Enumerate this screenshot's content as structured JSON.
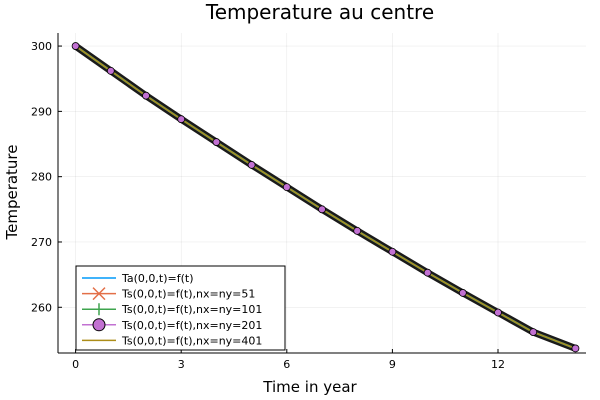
{
  "chart_data": {
    "type": "line",
    "title": "Temperature au centre",
    "xlabel": "Time in year",
    "ylabel": "Temperature",
    "xlim": [
      -0.5,
      14.5
    ],
    "ylim": [
      253.0,
      302.0
    ],
    "xticks": [
      0,
      3,
      6,
      9,
      12
    ],
    "yticks": [
      260,
      270,
      280,
      290,
      300
    ],
    "grid": true,
    "legend_position": "bottom-left",
    "x": [
      0.0,
      1.0,
      2.0,
      3.0,
      4.0,
      5.0,
      6.0,
      7.0,
      8.0,
      9.0,
      10.0,
      11.0,
      12.0,
      13.0,
      14.2
    ],
    "series": [
      {
        "name": "Ta(0,0,t)=f(t)",
        "color": "#009AFA",
        "marker": "none",
        "values": [
          300.0,
          296.2,
          292.4,
          288.8,
          285.3,
          281.8,
          278.4,
          275.0,
          271.7,
          268.5,
          265.3,
          262.2,
          259.2,
          256.2,
          253.7
        ]
      },
      {
        "name": "Ts(0,0,t)=f(t),nx=ny=51",
        "color": "#E36F47",
        "marker": "x",
        "values": [
          300.0,
          296.2,
          292.4,
          288.8,
          285.3,
          281.8,
          278.4,
          275.0,
          271.7,
          268.5,
          265.3,
          262.2,
          259.2,
          256.2,
          253.7
        ]
      },
      {
        "name": "Ts(0,0,t)=f(t),nx=ny=101",
        "color": "#3EA44E",
        "marker": "+",
        "values": [
          300.0,
          296.2,
          292.4,
          288.8,
          285.3,
          281.8,
          278.4,
          275.0,
          271.7,
          268.5,
          265.3,
          262.2,
          259.2,
          256.2,
          253.7
        ]
      },
      {
        "name": "Ts(0,0,t)=f(t),nx=ny=201",
        "color": "#C271D2",
        "marker": "circle",
        "values": [
          300.0,
          296.2,
          292.4,
          288.8,
          285.3,
          281.8,
          278.4,
          275.0,
          271.7,
          268.5,
          265.3,
          262.2,
          259.2,
          256.2,
          253.7
        ]
      },
      {
        "name": "Ts(0,0,t)=f(t),nx=ny=401",
        "color": "#AC8D18",
        "marker": "none",
        "values": [
          300.0,
          296.2,
          292.4,
          288.8,
          285.3,
          281.8,
          278.4,
          275.0,
          271.7,
          268.5,
          265.3,
          262.2,
          259.2,
          256.2,
          253.7
        ]
      }
    ]
  }
}
